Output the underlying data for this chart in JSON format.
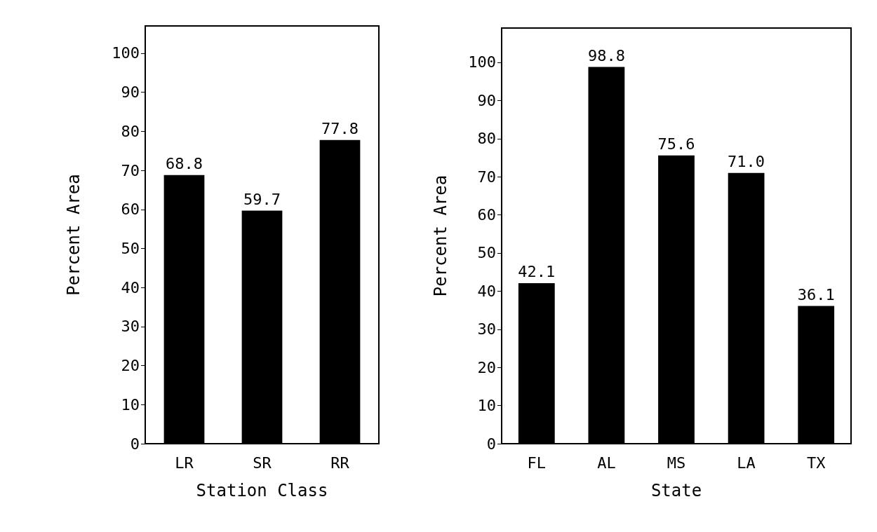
{
  "chart_data": [
    {
      "type": "bar",
      "categories": [
        "LR",
        "SR",
        "RR"
      ],
      "values": [
        68.8,
        59.7,
        77.8
      ],
      "value_labels": [
        "68.8",
        "59.7",
        "77.8"
      ],
      "color": "#000000",
      "xlabel": "Station Class",
      "ylabel": "Percent Area",
      "ylim": [
        0,
        107
      ],
      "yticks": [
        0,
        10,
        20,
        30,
        40,
        50,
        60,
        70,
        80,
        90,
        100
      ],
      "grid": false
    },
    {
      "type": "bar",
      "categories": [
        "FL",
        "AL",
        "MS",
        "LA",
        "TX"
      ],
      "values": [
        42.1,
        98.8,
        75.6,
        71.0,
        36.1
      ],
      "value_labels": [
        "42.1",
        "98.8",
        "75.6",
        "71.0",
        "36.1"
      ],
      "color": "#000000",
      "xlabel": "State",
      "ylabel": "Percent Area",
      "ylim": [
        0,
        109
      ],
      "yticks": [
        0,
        10,
        20,
        30,
        40,
        50,
        60,
        70,
        80,
        90,
        100
      ],
      "grid": false
    }
  ]
}
